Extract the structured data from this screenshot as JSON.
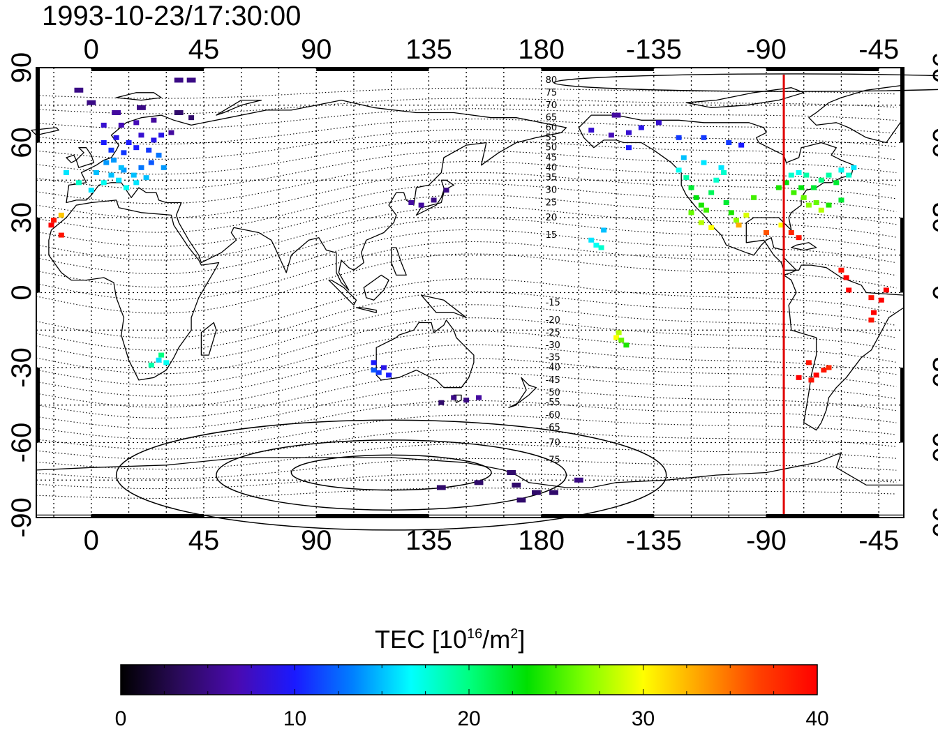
{
  "title": "1993-10-23/17:30:00",
  "colorbar": {
    "title_prefix": "TEC  [10",
    "title_sup1": "16",
    "title_mid": "/m",
    "title_sup2": "2",
    "title_suffix": "]",
    "range": [
      0,
      40
    ],
    "tick_labels": [
      "0",
      "10",
      "20",
      "30",
      "40"
    ],
    "colors": [
      "#000000",
      "#2a0a5a",
      "#4a0ab0",
      "#1a1aff",
      "#0080ff",
      "#00ffff",
      "#00ff80",
      "#00e000",
      "#80ff00",
      "#ffff00",
      "#ffa000",
      "#ff4000",
      "#ff0000"
    ]
  },
  "chart_data": {
    "type": "scatter",
    "description_axes": "longitude / latitude",
    "x_tick_labels": [
      "0",
      "45",
      "90",
      "135",
      "180",
      "-135",
      "-90",
      "-45"
    ],
    "x_tick_lons": [
      0,
      45,
      90,
      135,
      180,
      225,
      270,
      315
    ],
    "y_tick_labels": [
      "90",
      "60",
      "30",
      "0",
      "-30",
      "-60",
      "-90"
    ],
    "y_tick_lats": [
      90,
      60,
      30,
      0,
      -30,
      -60,
      -90
    ],
    "xlim": [
      -22,
      325
    ],
    "ylim": [
      -90,
      90
    ],
    "grid": true,
    "terminator_lon": 277,
    "contour_labels": [
      {
        "text": "80",
        "lat": 85
      },
      {
        "text": "75",
        "lat": 80
      },
      {
        "text": "70",
        "lat": 75
      },
      {
        "text": "65",
        "lat": 70
      },
      {
        "text": "60",
        "lat": 66
      },
      {
        "text": "55",
        "lat": 62
      },
      {
        "text": "50",
        "lat": 58
      },
      {
        "text": "45",
        "lat": 54
      },
      {
        "text": "40",
        "lat": 50
      },
      {
        "text": "35",
        "lat": 46
      },
      {
        "text": "30",
        "lat": 41
      },
      {
        "text": "25",
        "lat": 36
      },
      {
        "text": "20",
        "lat": 30
      },
      {
        "text": "15",
        "lat": 23
      },
      {
        "text": "-15",
        "lat": -4
      },
      {
        "text": "-20",
        "lat": -11
      },
      {
        "text": "-25",
        "lat": -16
      },
      {
        "text": "-30",
        "lat": -21
      },
      {
        "text": "-35",
        "lat": -26
      },
      {
        "text": "-40",
        "lat": -30
      },
      {
        "text": "-45",
        "lat": -35
      },
      {
        "text": "-50",
        "lat": -40
      },
      {
        "text": "-55",
        "lat": -44
      },
      {
        "text": "-60",
        "lat": -49
      },
      {
        "text": "-65",
        "lat": -54
      },
      {
        "text": "-70",
        "lat": -60
      },
      {
        "text": "-75",
        "lat": -67
      }
    ],
    "points": [
      {
        "lon": -10,
        "lat": 48,
        "tec": 16
      },
      {
        "lon": -5,
        "lat": 44,
        "tec": 18
      },
      {
        "lon": 0,
        "lat": 41,
        "tec": 16
      },
      {
        "lon": 2,
        "lat": 48,
        "tec": 15
      },
      {
        "lon": 5,
        "lat": 44,
        "tec": 17
      },
      {
        "lon": 8,
        "lat": 47,
        "tec": 15
      },
      {
        "lon": 11,
        "lat": 45,
        "tec": 16
      },
      {
        "lon": 13,
        "lat": 49,
        "tec": 14
      },
      {
        "lon": 14,
        "lat": 42,
        "tec": 17
      },
      {
        "lon": 17,
        "lat": 47,
        "tec": 15
      },
      {
        "lon": 20,
        "lat": 50,
        "tec": 13
      },
      {
        "lon": 24,
        "lat": 52,
        "tec": 12
      },
      {
        "lon": 27,
        "lat": 55,
        "tec": 13
      },
      {
        "lon": 29,
        "lat": 50,
        "tec": 14
      },
      {
        "lon": 6,
        "lat": 52,
        "tec": 14
      },
      {
        "lon": 9,
        "lat": 53,
        "tec": 14
      },
      {
        "lon": 12,
        "lat": 50,
        "tec": 15
      },
      {
        "lon": 18,
        "lat": 44,
        "tec": 16
      },
      {
        "lon": 22,
        "lat": 46,
        "tec": 15
      },
      {
        "lon": 5,
        "lat": 60,
        "tec": 10
      },
      {
        "lon": 10,
        "lat": 62,
        "tec": 9
      },
      {
        "lon": 15,
        "lat": 60,
        "tec": 10
      },
      {
        "lon": 20,
        "lat": 63,
        "tec": 8
      },
      {
        "lon": 25,
        "lat": 61,
        "tec": 9
      },
      {
        "lon": 8,
        "lat": 57,
        "tec": 11
      },
      {
        "lon": 13,
        "lat": 56,
        "tec": 11
      },
      {
        "lon": 18,
        "lat": 58,
        "tec": 10
      },
      {
        "lon": 23,
        "lat": 57,
        "tec": 11
      },
      {
        "lon": 28,
        "lat": 63,
        "tec": 9
      },
      {
        "lon": 32,
        "lat": 64,
        "tec": 6
      },
      {
        "lon": 5,
        "lat": 67,
        "tec": 8
      },
      {
        "lon": 12,
        "lat": 67,
        "tec": 7
      },
      {
        "lon": 18,
        "lat": 68,
        "tec": 7
      },
      {
        "lon": 25,
        "lat": 69,
        "tec": 6
      },
      {
        "lon": 10,
        "lat": 72,
        "tec": 6
      },
      {
        "lon": 20,
        "lat": 74,
        "tec": 5
      },
      {
        "lon": 35,
        "lat": 72,
        "tec": 4
      },
      {
        "lon": 40,
        "lat": 70,
        "tec": 4
      },
      {
        "lon": 0,
        "lat": 76,
        "tec": 5
      },
      {
        "lon": -5,
        "lat": 81,
        "tec": 5
      },
      {
        "lon": 35,
        "lat": 85,
        "tec": 5
      },
      {
        "lon": 40,
        "lat": 85,
        "tec": 5
      },
      {
        "lon": -15,
        "lat": 29,
        "tec": 39
      },
      {
        "lon": -16,
        "lat": 27,
        "tec": 40
      },
      {
        "lon": -12,
        "lat": 31,
        "tec": 32
      },
      {
        "lon": -12,
        "lat": 23,
        "tec": 39
      },
      {
        "lon": 28,
        "lat": -25,
        "tec": 20
      },
      {
        "lon": 24,
        "lat": -29,
        "tec": 19
      },
      {
        "lon": 30,
        "lat": -28,
        "tec": 17
      },
      {
        "lon": 27,
        "lat": -27,
        "tec": 16
      },
      {
        "lon": 128,
        "lat": 36,
        "tec": 6
      },
      {
        "lon": 132,
        "lat": 35,
        "tec": 6
      },
      {
        "lon": 137,
        "lat": 37,
        "tec": 5
      },
      {
        "lon": 142,
        "lat": 41,
        "tec": 5
      },
      {
        "lon": 113,
        "lat": -28,
        "tec": 10
      },
      {
        "lon": 115,
        "lat": -32,
        "tec": 11
      },
      {
        "lon": 117,
        "lat": -30,
        "tec": 9
      },
      {
        "lon": 119,
        "lat": -33,
        "tec": 10
      },
      {
        "lon": 113,
        "lat": -31,
        "tec": 12
      },
      {
        "lon": 140,
        "lat": -44,
        "tec": 4
      },
      {
        "lon": 145,
        "lat": -42,
        "tec": 5
      },
      {
        "lon": 150,
        "lat": -43,
        "tec": 5
      },
      {
        "lon": 155,
        "lat": -42,
        "tec": 6
      },
      {
        "lon": 140,
        "lat": -78,
        "tec": 4
      },
      {
        "lon": 155,
        "lat": -76,
        "tec": 4
      },
      {
        "lon": 170,
        "lat": -77,
        "tec": 4
      },
      {
        "lon": 178,
        "lat": -80,
        "tec": 4
      },
      {
        "lon": 185,
        "lat": -80,
        "tec": 4
      },
      {
        "lon": 195,
        "lat": -75,
        "tec": 5
      },
      {
        "lon": 168,
        "lat": -72,
        "tec": 4
      },
      {
        "lon": 172,
        "lat": -83,
        "tec": 4
      },
      {
        "lon": 200,
        "lat": 21,
        "tec": 16
      },
      {
        "lon": 202,
        "lat": 19,
        "tec": 17
      },
      {
        "lon": 205,
        "lat": 25,
        "tec": 15
      },
      {
        "lon": 204,
        "lat": 18,
        "tec": 18
      },
      {
        "lon": 210,
        "lat": -18,
        "tec": 30
      },
      {
        "lon": 212,
        "lat": -19,
        "tec": 26
      },
      {
        "lon": 214,
        "lat": -21,
        "tec": 24
      },
      {
        "lon": 211,
        "lat": -16,
        "tec": 28
      },
      {
        "lon": 200,
        "lat": 65,
        "tec": 8
      },
      {
        "lon": 208,
        "lat": 63,
        "tec": 7
      },
      {
        "lon": 215,
        "lat": 64,
        "tec": 8
      },
      {
        "lon": 220,
        "lat": 66,
        "tec": 9
      },
      {
        "lon": 215,
        "lat": 58,
        "tec": 10
      },
      {
        "lon": 210,
        "lat": 71,
        "tec": 6
      },
      {
        "lon": 227,
        "lat": 68,
        "tec": 8
      },
      {
        "lon": 235,
        "lat": 62,
        "tec": 11
      },
      {
        "lon": 245,
        "lat": 62,
        "tec": 11
      },
      {
        "lon": 255,
        "lat": 60,
        "tec": 11
      },
      {
        "lon": 260,
        "lat": 59,
        "tec": 10
      },
      {
        "lon": 235,
        "lat": 49,
        "tec": 17
      },
      {
        "lon": 238,
        "lat": 46,
        "tec": 19
      },
      {
        "lon": 240,
        "lat": 42,
        "tec": 22
      },
      {
        "lon": 242,
        "lat": 38,
        "tec": 23
      },
      {
        "lon": 244,
        "lat": 35,
        "tec": 24
      },
      {
        "lon": 246,
        "lat": 33,
        "tec": 25
      },
      {
        "lon": 248,
        "lat": 40,
        "tec": 21
      },
      {
        "lon": 250,
        "lat": 45,
        "tec": 18
      },
      {
        "lon": 252,
        "lat": 50,
        "tec": 16
      },
      {
        "lon": 254,
        "lat": 36,
        "tec": 22
      },
      {
        "lon": 256,
        "lat": 32,
        "tec": 24
      },
      {
        "lon": 258,
        "lat": 29,
        "tec": 27
      },
      {
        "lon": 262,
        "lat": 31,
        "tec": 29
      },
      {
        "lon": 265,
        "lat": 38,
        "tec": 25
      },
      {
        "lon": 240,
        "lat": 32,
        "tec": 26
      },
      {
        "lon": 244,
        "lat": 28,
        "tec": 28
      },
      {
        "lon": 248,
        "lat": 26,
        "tec": 30
      },
      {
        "lon": 237,
        "lat": 54,
        "tec": 15
      },
      {
        "lon": 245,
        "lat": 52,
        "tec": 16
      },
      {
        "lon": 259,
        "lat": 27,
        "tec": 33
      },
      {
        "lon": 253,
        "lat": 48,
        "tec": 18
      },
      {
        "lon": 275,
        "lat": 42,
        "tec": 24
      },
      {
        "lon": 278,
        "lat": 44,
        "tec": 23
      },
      {
        "lon": 281,
        "lat": 40,
        "tec": 25
      },
      {
        "lon": 284,
        "lat": 42,
        "tec": 23
      },
      {
        "lon": 285,
        "lat": 38,
        "tec": 26
      },
      {
        "lon": 287,
        "lat": 35,
        "tec": 27
      },
      {
        "lon": 289,
        "lat": 42,
        "tec": 22
      },
      {
        "lon": 292,
        "lat": 45,
        "tec": 20
      },
      {
        "lon": 295,
        "lat": 47,
        "tec": 19
      },
      {
        "lon": 298,
        "lat": 44,
        "tec": 22
      },
      {
        "lon": 300,
        "lat": 49,
        "tec": 17
      },
      {
        "lon": 303,
        "lat": 47,
        "tec": 18
      },
      {
        "lon": 305,
        "lat": 50,
        "tec": 16
      },
      {
        "lon": 290,
        "lat": 36,
        "tec": 26
      },
      {
        "lon": 292,
        "lat": 33,
        "tec": 28
      },
      {
        "lon": 280,
        "lat": 47,
        "tec": 18
      },
      {
        "lon": 283,
        "lat": 48,
        "tec": 17
      },
      {
        "lon": 286,
        "lat": 47,
        "tec": 19
      },
      {
        "lon": 295,
        "lat": 35,
        "tec": 24
      },
      {
        "lon": 300,
        "lat": 37,
        "tec": 22
      },
      {
        "lon": 270,
        "lat": 24,
        "tec": 36
      },
      {
        "lon": 276,
        "lat": 27,
        "tec": 30
      },
      {
        "lon": 280,
        "lat": 24,
        "tec": 38
      },
      {
        "lon": 283,
        "lat": 22,
        "tec": 39
      },
      {
        "lon": 300,
        "lat": 9,
        "tec": 39
      },
      {
        "lon": 302,
        "lat": 6,
        "tec": 40
      },
      {
        "lon": 303,
        "lat": 1,
        "tec": 40
      },
      {
        "lon": 312,
        "lat": -2,
        "tec": 39
      },
      {
        "lon": 316,
        "lat": -3,
        "tec": 40
      },
      {
        "lon": 313,
        "lat": -8,
        "tec": 40
      },
      {
        "lon": 312,
        "lat": -11,
        "tec": 39
      },
      {
        "lon": 318,
        "lat": 1,
        "tec": 40
      },
      {
        "lon": 287,
        "lat": -28,
        "tec": 39
      },
      {
        "lon": 290,
        "lat": -33,
        "tec": 40
      },
      {
        "lon": 293,
        "lat": -31,
        "tec": 39
      },
      {
        "lon": 295,
        "lat": -30,
        "tec": 38
      },
      {
        "lon": 283,
        "lat": -34,
        "tec": 40
      },
      {
        "lon": 288,
        "lat": -35,
        "tec": 39
      }
    ]
  }
}
